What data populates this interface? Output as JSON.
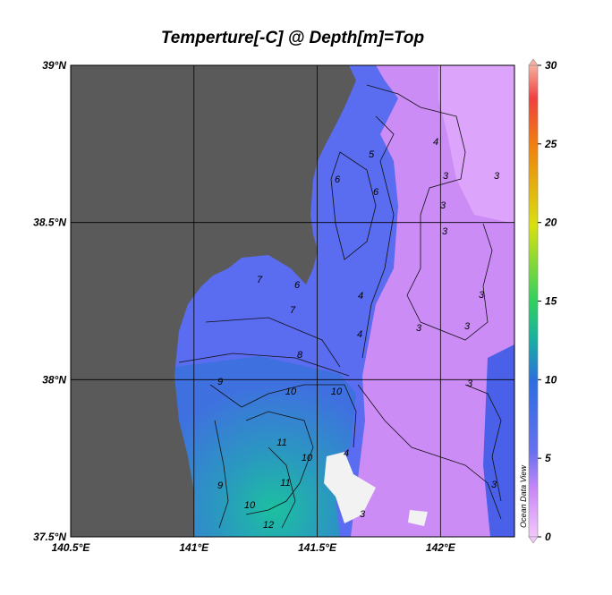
{
  "title": "Temperture[-C] @ Depth[m]=Top",
  "x_axis": {
    "range": [
      140.5,
      142.3
    ],
    "ticks": [
      {
        "value": 140.5,
        "label": "140.5°E"
      },
      {
        "value": 141,
        "label": "141°E"
      },
      {
        "value": 141.5,
        "label": "141.5°E"
      },
      {
        "value": 142,
        "label": "142°E"
      }
    ]
  },
  "y_axis": {
    "range": [
      37.5,
      39
    ],
    "ticks": [
      {
        "value": 37.5,
        "label": "37.5°N"
      },
      {
        "value": 38,
        "label": "38°N"
      },
      {
        "value": 38.5,
        "label": "38.5°N"
      },
      {
        "value": 39,
        "label": "39°N"
      }
    ]
  },
  "colorbar": {
    "range": [
      0,
      30
    ],
    "ticks": [
      0,
      5,
      10,
      15,
      20,
      25,
      30
    ]
  },
  "contour_labels": [
    "5",
    "6",
    "6",
    "4",
    "3",
    "3",
    "3",
    "3",
    "6",
    "7",
    "7",
    "4",
    "4",
    "3",
    "3",
    "3",
    "8",
    "9",
    "10",
    "10",
    "3",
    "11",
    "10",
    "9",
    "11",
    "10",
    "12",
    "4",
    "3",
    "3"
  ],
  "watermark": "Ocean Data View"
}
